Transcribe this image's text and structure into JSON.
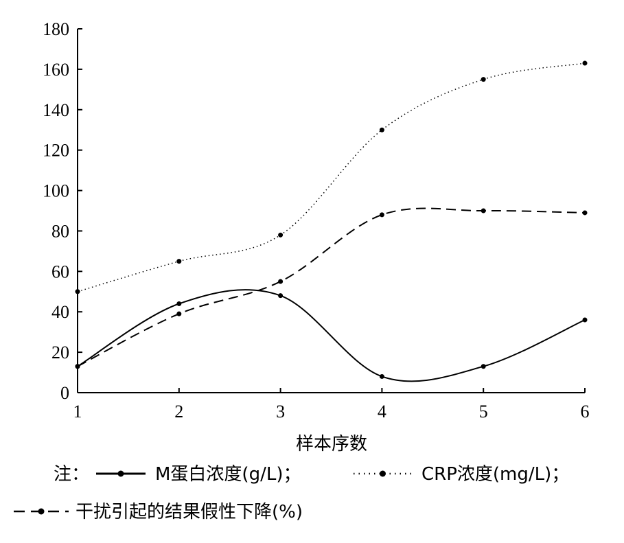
{
  "chart_data": {
    "type": "line",
    "x": [
      1,
      2,
      3,
      4,
      5,
      6
    ],
    "xlabel": "样本序数",
    "ylabel": "",
    "xlim": [
      1,
      6
    ],
    "ylim": [
      0,
      180
    ],
    "yticks": [
      0,
      20,
      40,
      60,
      80,
      100,
      120,
      140,
      160,
      180
    ],
    "xticks": [
      1,
      2,
      3,
      4,
      5,
      6
    ],
    "grid": false,
    "legend_position": "bottom",
    "legend_prefix": "注：",
    "series": [
      {
        "name": "M蛋白浓度(g/L)；",
        "values": [
          13,
          44,
          48,
          8,
          13,
          36
        ],
        "style": "solid",
        "color": "#000000"
      },
      {
        "name": "CRP浓度(mg/L)；",
        "values": [
          50,
          65,
          78,
          130,
          155,
          163
        ],
        "style": "dotted",
        "color": "#000000"
      },
      {
        "name": "干扰引起的结果假性下降(%)",
        "values": [
          13,
          39,
          55,
          88,
          90,
          89
        ],
        "style": "dashed",
        "color": "#000000"
      }
    ]
  }
}
